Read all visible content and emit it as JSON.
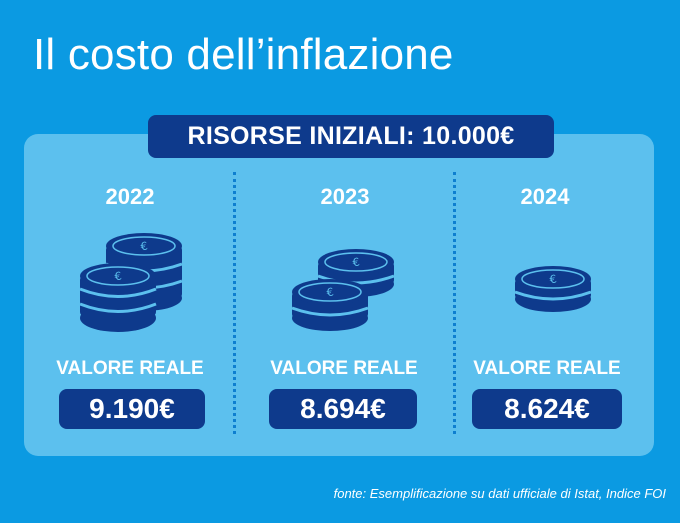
{
  "title": "Il costo dell’inflazione",
  "banner": "RISORSE INIZIALI: 10.000€",
  "columns": [
    {
      "year": "2022",
      "label": "VALORE REALE",
      "value": "9.190€",
      "coins_icon": "coin-stack-large-icon"
    },
    {
      "year": "2023",
      "label": "VALORE REALE",
      "value": "8.694€",
      "coins_icon": "coin-stack-medium-icon"
    },
    {
      "year": "2024",
      "label": "VALORE REALE",
      "value": "8.624€",
      "coins_icon": "single-coin-icon"
    }
  ],
  "source": "fonte: Esemplificazione su dati ufficiale di Istat, Indice FOI",
  "colors": {
    "background": "#0b9ae2",
    "panel": "#5cc0ee",
    "navy": "#0e3a8c",
    "dotted": "#0e7fd0"
  }
}
